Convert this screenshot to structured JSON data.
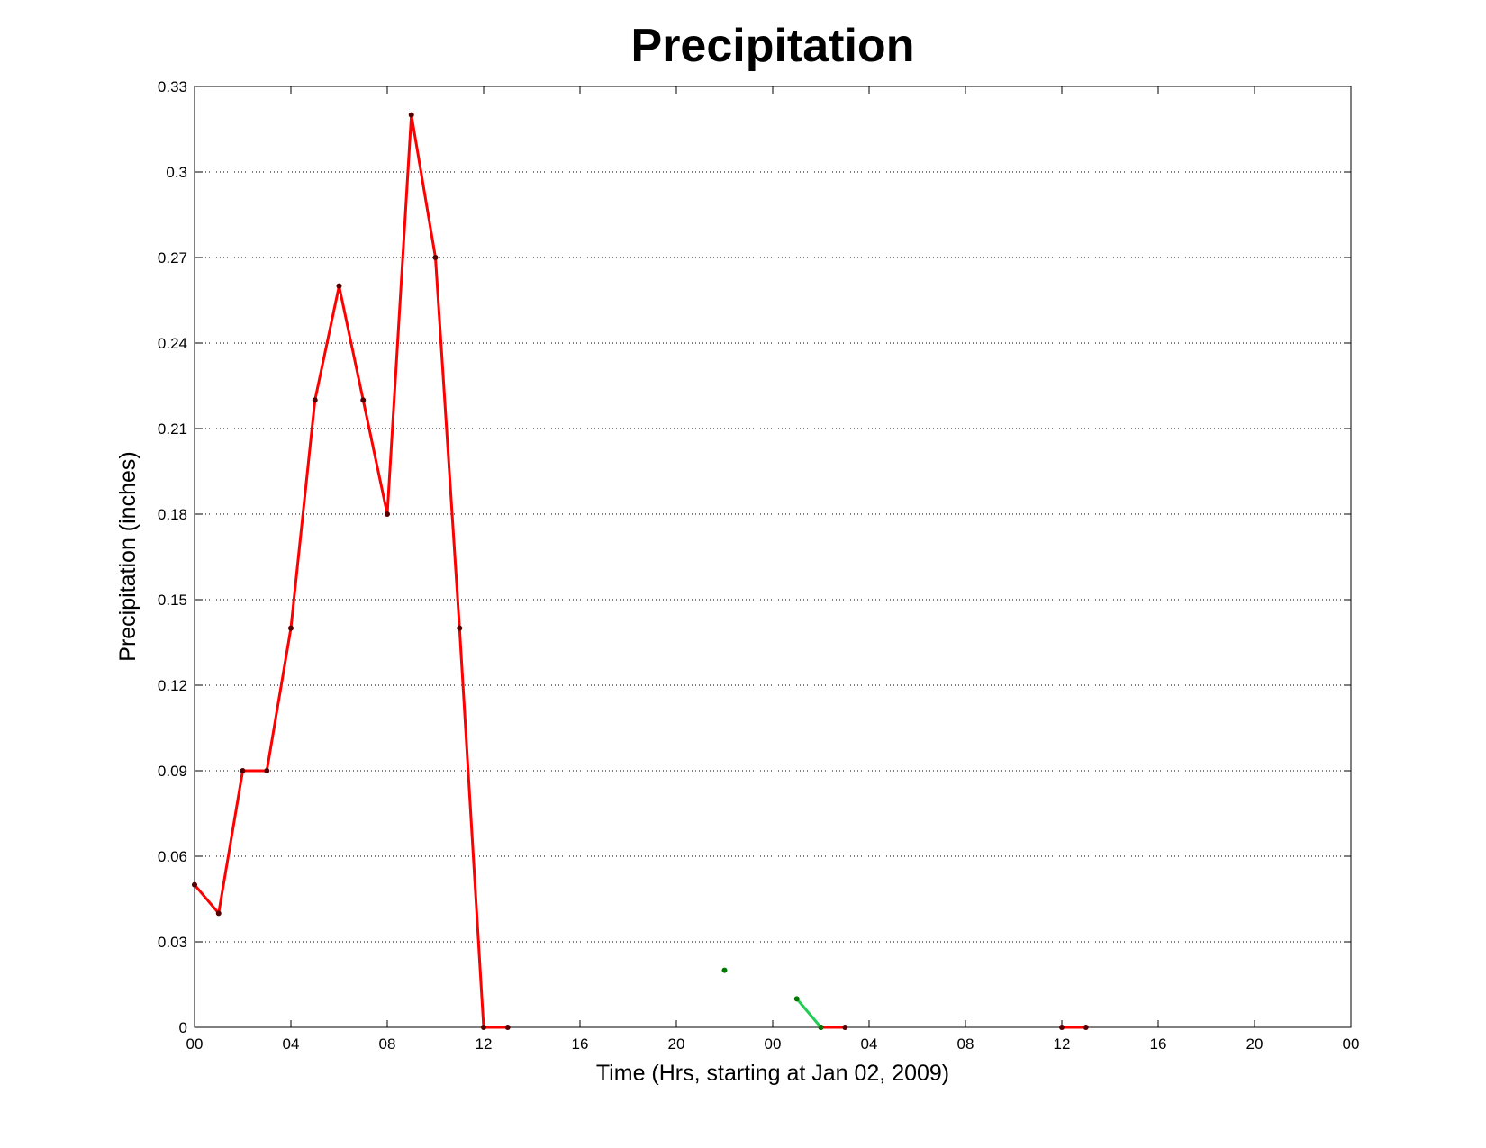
{
  "chart_data": {
    "type": "line",
    "title": "Precipitation",
    "x_label": "Time (Hrs, starting at Jan 02, 2009)",
    "y_label": "Precipitation (inches)",
    "xlim": [
      0,
      48
    ],
    "xticks": [
      {
        "value": 0,
        "label": "00"
      },
      {
        "value": 4,
        "label": "04"
      },
      {
        "value": 8,
        "label": "08"
      },
      {
        "value": 12,
        "label": "12"
      },
      {
        "value": 16,
        "label": "16"
      },
      {
        "value": 20,
        "label": "20"
      },
      {
        "value": 24,
        "label": "00"
      },
      {
        "value": 28,
        "label": "04"
      },
      {
        "value": 32,
        "label": "08"
      },
      {
        "value": 36,
        "label": "12"
      },
      {
        "value": 40,
        "label": "16"
      },
      {
        "value": 44,
        "label": "20"
      },
      {
        "value": 48,
        "label": "00"
      }
    ],
    "ylim": [
      0,
      0.33
    ],
    "yticks": [
      0,
      0.03,
      0.06,
      0.09,
      0.12,
      0.15,
      0.18,
      0.21,
      0.24,
      0.27,
      0.3,
      0.33
    ],
    "grid": true,
    "series": [
      {
        "color": "#ff0000",
        "marker_color": "#550000",
        "x": [
          0,
          1,
          2,
          3,
          4,
          5,
          6,
          7,
          8,
          9,
          10,
          11,
          12,
          13,
          null,
          26,
          27,
          null,
          36,
          37
        ],
        "values": [
          0.05,
          0.04,
          0.09,
          0.09,
          0.14,
          0.22,
          0.26,
          0.22,
          0.18,
          0.32,
          0.27,
          0.14,
          0,
          0,
          null,
          0,
          0,
          null,
          0,
          0
        ]
      },
      {
        "color": "#22cc55",
        "marker_color": "#007700",
        "x": [
          22,
          null,
          25,
          26
        ],
        "values": [
          0.02,
          null,
          0.01,
          0
        ]
      }
    ]
  }
}
